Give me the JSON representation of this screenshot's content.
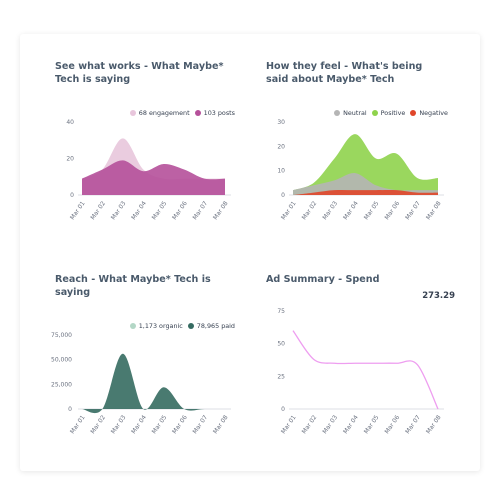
{
  "panels": {
    "works": {
      "title": "See what works - What Maybe* Tech is saying",
      "legend": [
        {
          "label": "68 engagement",
          "color": "#e8c6dc"
        },
        {
          "label": "103 posts",
          "color": "#b5509a"
        }
      ]
    },
    "feel": {
      "title": "How they feel - What's being said about Maybe* Tech",
      "legend": [
        {
          "label": "Neutral",
          "color": "#b5b5b5"
        },
        {
          "label": "Positive",
          "color": "#8fd34c"
        },
        {
          "label": "Negative",
          "color": "#e0462a"
        }
      ]
    },
    "reach": {
      "title": "Reach - What Maybe* Tech is saying",
      "legend": [
        {
          "label": "1,173 organic",
          "color": "#b3d7c6"
        },
        {
          "label": "78,965 paid",
          "color": "#356b61"
        }
      ]
    },
    "ad": {
      "title": "Ad Summary - Spend",
      "total": "273.29"
    }
  },
  "chart_data": [
    {
      "type": "area",
      "x": [
        "Mar 01",
        "Mar 02",
        "Mar 03",
        "Mar 04",
        "Mar 05",
        "Mar 06",
        "Mar 07",
        "Mar 08"
      ],
      "yticks": [
        "0",
        "20",
        "40"
      ],
      "ylim": [
        0,
        40
      ],
      "series": [
        {
          "name": "68 engagement",
          "values": [
            9,
            14,
            31,
            14,
            9,
            9,
            9,
            9
          ],
          "color": "#e8c6dc"
        },
        {
          "name": "103 posts",
          "values": [
            9,
            14,
            19,
            13,
            17,
            14,
            9,
            9
          ],
          "color": "#b5509a"
        }
      ]
    },
    {
      "type": "area",
      "x": [
        "Mar 01",
        "Mar 02",
        "Mar 03",
        "Mar 04",
        "Mar 05",
        "Mar 06",
        "Mar 07",
        "Mar 08"
      ],
      "yticks": [
        "0",
        "10",
        "20",
        "30"
      ],
      "ylim": [
        0,
        30
      ],
      "series": [
        {
          "name": "Positive",
          "values": [
            2,
            5,
            15,
            25,
            15,
            17,
            7,
            7
          ],
          "color": "#8fd34c"
        },
        {
          "name": "Neutral",
          "values": [
            2,
            4,
            6,
            9,
            4,
            2,
            2,
            2
          ],
          "color": "#b5b5b5"
        },
        {
          "name": "Negative",
          "values": [
            0,
            1,
            2,
            2,
            2,
            2,
            1,
            1
          ],
          "color": "#e0462a"
        }
      ]
    },
    {
      "type": "area",
      "x": [
        "Mar 01",
        "Mar 02",
        "Mar 03",
        "Mar 04",
        "Mar 05",
        "Mar 06",
        "Mar 07",
        "Mar 08"
      ],
      "yticks": [
        "0",
        "25,000",
        "50,000",
        "75,000"
      ],
      "ylim": [
        0,
        75000
      ],
      "series": [
        {
          "name": "1,173 organic",
          "values": [
            0,
            0,
            200,
            0,
            100,
            0,
            0,
            0
          ],
          "color": "#b3d7c6"
        },
        {
          "name": "78,965 paid",
          "values": [
            0,
            0,
            56000,
            0,
            22000,
            0,
            0,
            0
          ],
          "color": "#356b61"
        }
      ]
    },
    {
      "type": "line",
      "x": [
        "Mar 01",
        "Mar 02",
        "Mar 03",
        "Mar 04",
        "Mar 05",
        "Mar 06",
        "Mar 07",
        "Mar 08"
      ],
      "yticks": [
        "0",
        "25",
        "50",
        "75"
      ],
      "ylim": [
        0,
        75
      ],
      "series": [
        {
          "name": "Spend",
          "values": [
            60,
            38,
            35,
            35,
            35,
            35,
            34,
            0
          ],
          "color": "#ee9ef0"
        }
      ]
    }
  ]
}
